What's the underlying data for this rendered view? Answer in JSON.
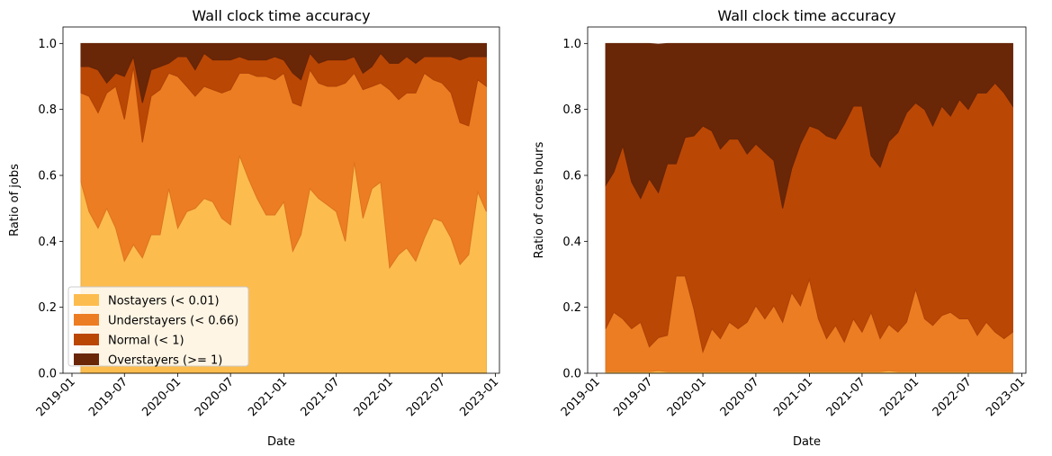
{
  "chart_data": [
    {
      "type": "area",
      "title": "Wall clock time accuracy",
      "xlabel": "Date",
      "ylabel": "Ratio of jobs",
      "ylim": [
        0,
        1.05
      ],
      "xlim": [
        "2018-12-01",
        "2023-01-15"
      ],
      "x_ticks": [
        "2019-01",
        "2019-07",
        "2020-01",
        "2020-07",
        "2021-01",
        "2021-07",
        "2022-01",
        "2022-07",
        "2023-01"
      ],
      "y_ticks": [
        "0.0",
        "0.2",
        "0.4",
        "0.6",
        "0.8",
        "1.0"
      ],
      "stacked": true,
      "legend_position": "lower-left",
      "x": [
        "2019-02",
        "2019-03",
        "2019-04",
        "2019-05",
        "2019-06",
        "2019-07",
        "2019-08",
        "2019-09",
        "2019-10",
        "2019-11",
        "2019-12",
        "2020-01",
        "2020-02",
        "2020-03",
        "2020-04",
        "2020-05",
        "2020-06",
        "2020-07",
        "2020-08",
        "2020-09",
        "2020-10",
        "2020-11",
        "2020-12",
        "2021-01",
        "2021-02",
        "2021-03",
        "2021-04",
        "2021-05",
        "2021-06",
        "2021-07",
        "2021-08",
        "2021-09",
        "2021-10",
        "2021-11",
        "2021-12",
        "2022-01",
        "2022-02",
        "2022-03",
        "2022-04",
        "2022-05",
        "2022-06",
        "2022-07",
        "2022-08",
        "2022-09",
        "2022-10",
        "2022-11",
        "2022-12"
      ],
      "series": [
        {
          "name": "Nostayers (< 0.01)",
          "color": "#fdbc4e",
          "values": [
            0.58,
            0.49,
            0.44,
            0.5,
            0.44,
            0.34,
            0.39,
            0.35,
            0.42,
            0.42,
            0.56,
            0.44,
            0.49,
            0.5,
            0.53,
            0.52,
            0.47,
            0.45,
            0.66,
            0.59,
            0.53,
            0.48,
            0.48,
            0.52,
            0.37,
            0.42,
            0.56,
            0.53,
            0.51,
            0.49,
            0.4,
            0.64,
            0.47,
            0.56,
            0.58,
            0.32,
            0.36,
            0.38,
            0.34,
            0.41,
            0.47,
            0.46,
            0.41,
            0.33,
            0.36,
            0.55,
            0.49
          ]
        },
        {
          "name": "Understayers (< 0.66)",
          "color": "#ed7d22",
          "values": [
            0.27,
            0.35,
            0.35,
            0.35,
            0.43,
            0.43,
            0.54,
            0.35,
            0.42,
            0.44,
            0.35,
            0.46,
            0.38,
            0.34,
            0.34,
            0.34,
            0.38,
            0.41,
            0.25,
            0.32,
            0.37,
            0.42,
            0.41,
            0.39,
            0.45,
            0.39,
            0.36,
            0.35,
            0.36,
            0.38,
            0.48,
            0.27,
            0.39,
            0.31,
            0.3,
            0.54,
            0.47,
            0.47,
            0.51,
            0.5,
            0.42,
            0.42,
            0.44,
            0.43,
            0.39,
            0.34,
            0.38
          ]
        },
        {
          "name": "Normal (< 1)",
          "color": "#bb4705",
          "values": [
            0.08,
            0.09,
            0.13,
            0.03,
            0.04,
            0.13,
            0.03,
            0.12,
            0.08,
            0.07,
            0.03,
            0.06,
            0.09,
            0.08,
            0.1,
            0.09,
            0.1,
            0.09,
            0.05,
            0.04,
            0.05,
            0.05,
            0.07,
            0.04,
            0.09,
            0.08,
            0.05,
            0.06,
            0.08,
            0.08,
            0.07,
            0.05,
            0.05,
            0.06,
            0.09,
            0.08,
            0.11,
            0.11,
            0.09,
            0.05,
            0.07,
            0.08,
            0.11,
            0.19,
            0.21,
            0.07,
            0.09
          ]
        },
        {
          "name": "Overstayers (>= 1)",
          "color": "#6a2707",
          "values": [
            0.07,
            0.07,
            0.08,
            0.12,
            0.09,
            0.1,
            0.04,
            0.18,
            0.08,
            0.07,
            0.06,
            0.04,
            0.04,
            0.08,
            0.03,
            0.05,
            0.05,
            0.05,
            0.04,
            0.05,
            0.05,
            0.05,
            0.04,
            0.05,
            0.09,
            0.11,
            0.03,
            0.06,
            0.05,
            0.05,
            0.05,
            0.04,
            0.09,
            0.07,
            0.03,
            0.06,
            0.06,
            0.04,
            0.06,
            0.04,
            0.04,
            0.04,
            0.04,
            0.05,
            0.04,
            0.04,
            0.04
          ]
        }
      ]
    },
    {
      "type": "area",
      "title": "Wall clock time accuracy",
      "xlabel": "Date",
      "ylabel": "Ratio of cores hours",
      "ylim": [
        0,
        1.05
      ],
      "xlim": [
        "2018-12-01",
        "2023-01-15"
      ],
      "x_ticks": [
        "2019-01",
        "2019-07",
        "2020-01",
        "2020-07",
        "2021-01",
        "2021-07",
        "2022-01",
        "2022-07",
        "2023-01"
      ],
      "y_ticks": [
        "0.0",
        "0.2",
        "0.4",
        "0.6",
        "0.8",
        "1.0"
      ],
      "stacked": true,
      "x": [
        "2019-02",
        "2019-03",
        "2019-04",
        "2019-05",
        "2019-06",
        "2019-07",
        "2019-08",
        "2019-09",
        "2019-10",
        "2019-11",
        "2019-12",
        "2020-01",
        "2020-02",
        "2020-03",
        "2020-04",
        "2020-05",
        "2020-06",
        "2020-07",
        "2020-08",
        "2020-09",
        "2020-10",
        "2020-11",
        "2020-12",
        "2021-01",
        "2021-02",
        "2021-03",
        "2021-04",
        "2021-05",
        "2021-06",
        "2021-07",
        "2021-08",
        "2021-09",
        "2021-10",
        "2021-11",
        "2021-12",
        "2022-01",
        "2022-02",
        "2022-03",
        "2022-04",
        "2022-05",
        "2022-06",
        "2022-07",
        "2022-08",
        "2022-09",
        "2022-10",
        "2022-11",
        "2022-12"
      ],
      "series": [
        {
          "name": "Nostayers (< 0.01)",
          "color": "#fdbc4e",
          "values": [
            0.005,
            0.005,
            0.005,
            0.005,
            0.005,
            0.005,
            0.008,
            0.005,
            0.005,
            0.005,
            0.005,
            0.005,
            0.005,
            0.005,
            0.005,
            0.005,
            0.005,
            0.005,
            0.005,
            0.005,
            0.005,
            0.005,
            0.005,
            0.005,
            0.005,
            0.005,
            0.005,
            0.005,
            0.005,
            0.005,
            0.005,
            0.005,
            0.008,
            0.005,
            0.005,
            0.005,
            0.005,
            0.005,
            0.005,
            0.005,
            0.005,
            0.005,
            0.005,
            0.005,
            0.005,
            0.005,
            0.005
          ]
        },
        {
          "name": "Understayers (< 0.66)",
          "color": "#ed7d22",
          "values": [
            0.13,
            0.18,
            0.16,
            0.13,
            0.15,
            0.075,
            0.1,
            0.11,
            0.29,
            0.29,
            0.19,
            0.06,
            0.13,
            0.1,
            0.15,
            0.13,
            0.15,
            0.2,
            0.16,
            0.2,
            0.15,
            0.24,
            0.2,
            0.28,
            0.16,
            0.1,
            0.14,
            0.09,
            0.16,
            0.12,
            0.18,
            0.1,
            0.14,
            0.12,
            0.15,
            0.25,
            0.16,
            0.14,
            0.17,
            0.18,
            0.16,
            0.16,
            0.11,
            0.15,
            0.12,
            0.1,
            0.12
          ]
        },
        {
          "name": "Normal (< 1)",
          "color": "#bb4705",
          "values": [
            0.435,
            0.425,
            0.525,
            0.445,
            0.375,
            0.51,
            0.44,
            0.52,
            0.34,
            0.42,
            0.525,
            0.685,
            0.6,
            0.575,
            0.555,
            0.575,
            0.51,
            0.49,
            0.505,
            0.44,
            0.345,
            0.375,
            0.49,
            0.465,
            0.575,
            0.615,
            0.565,
            0.66,
            0.645,
            0.685,
            0.475,
            0.52,
            0.555,
            0.605,
            0.635,
            0.565,
            0.635,
            0.605,
            0.635,
            0.595,
            0.665,
            0.635,
            0.735,
            0.695,
            0.755,
            0.745,
            0.685
          ]
        },
        {
          "name": "Overstayers (>= 1)",
          "color": "#6a2707",
          "values": [
            0.43,
            0.39,
            0.31,
            0.42,
            0.47,
            0.41,
            0.45,
            0.365,
            0.365,
            0.285,
            0.28,
            0.25,
            0.265,
            0.32,
            0.29,
            0.29,
            0.335,
            0.305,
            0.33,
            0.355,
            0.5,
            0.38,
            0.305,
            0.25,
            0.26,
            0.28,
            0.29,
            0.245,
            0.19,
            0.19,
            0.34,
            0.375,
            0.297,
            0.27,
            0.21,
            0.18,
            0.2,
            0.25,
            0.19,
            0.22,
            0.17,
            0.2,
            0.15,
            0.15,
            0.12,
            0.15,
            0.19
          ]
        }
      ]
    }
  ]
}
